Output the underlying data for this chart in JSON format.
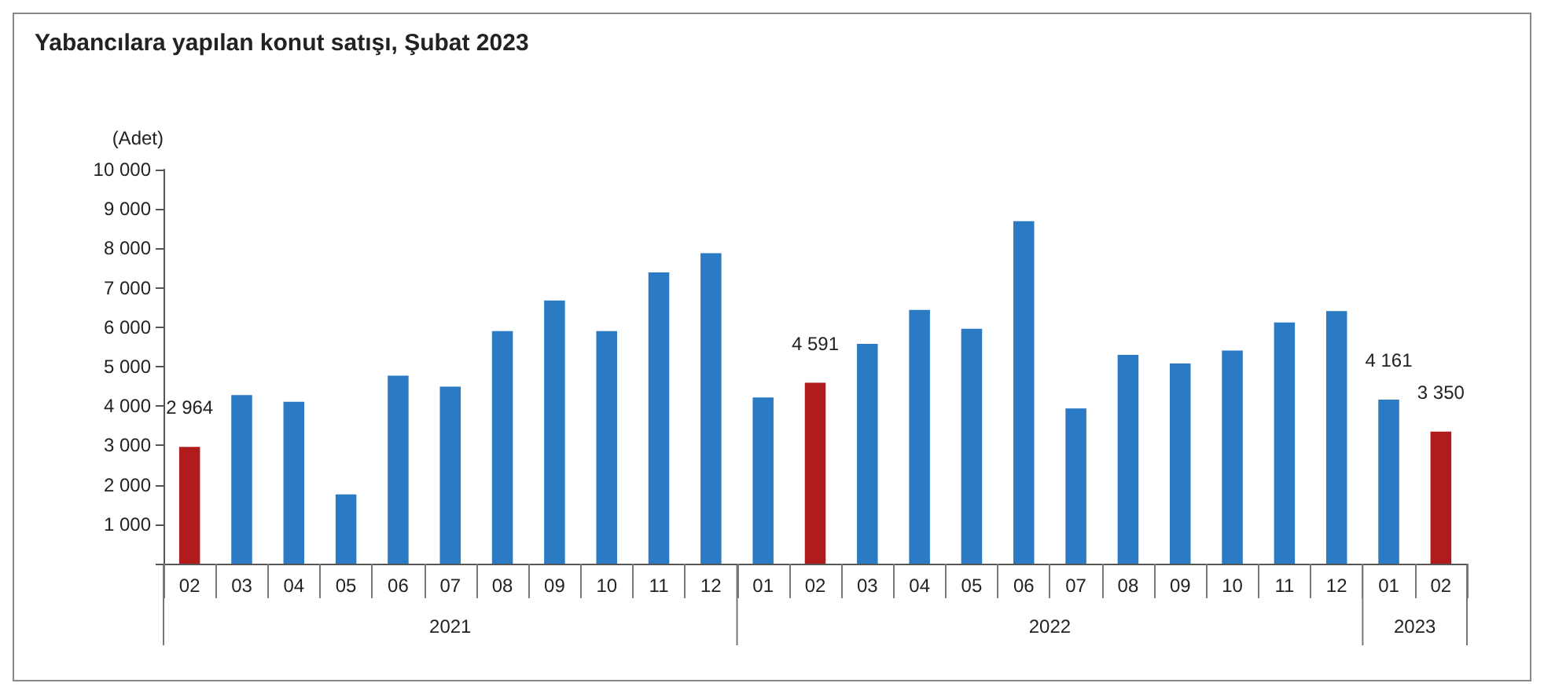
{
  "chart_data": {
    "type": "bar",
    "title": "Yabancılara yapılan konut satışı, Şubat 2023",
    "ylabel": "(Adet)",
    "categories": [
      "02",
      "03",
      "04",
      "05",
      "06",
      "07",
      "08",
      "09",
      "10",
      "11",
      "12",
      "01",
      "02",
      "03",
      "04",
      "05",
      "06",
      "07",
      "08",
      "09",
      "10",
      "11",
      "12",
      "01",
      "02"
    ],
    "values": [
      2964,
      4280,
      4110,
      1760,
      4770,
      4490,
      5900,
      6680,
      5900,
      7390,
      7880,
      4220,
      4591,
      5580,
      6440,
      5960,
      8690,
      3940,
      5300,
      5080,
      5410,
      6120,
      6410,
      4161,
      3350
    ],
    "colors": [
      "#b01c1c",
      "#2b7bc4",
      "#2b7bc4",
      "#2b7bc4",
      "#2b7bc4",
      "#2b7bc4",
      "#2b7bc4",
      "#2b7bc4",
      "#2b7bc4",
      "#2b7bc4",
      "#2b7bc4",
      "#2b7bc4",
      "#b01c1c",
      "#2b7bc4",
      "#2b7bc4",
      "#2b7bc4",
      "#2b7bc4",
      "#2b7bc4",
      "#2b7bc4",
      "#2b7bc4",
      "#2b7bc4",
      "#2b7bc4",
      "#2b7bc4",
      "#2b7bc4",
      "#b01c1c"
    ],
    "value_labels": [
      "2 964",
      null,
      null,
      null,
      null,
      null,
      null,
      null,
      null,
      null,
      null,
      null,
      "4 591",
      null,
      null,
      null,
      null,
      null,
      null,
      null,
      null,
      null,
      null,
      "4 161",
      "3 350"
    ],
    "annotations": [
      "2021",
      "2022",
      "2023"
    ],
    "ylim": [
      0,
      10000
    ],
    "yticks": [
      {
        "value": 0,
        "label": null
      },
      {
        "value": 1000,
        "label": "1 000"
      },
      {
        "value": 2000,
        "label": "2 000"
      },
      {
        "value": 3000,
        "label": "3 000"
      },
      {
        "value": 4000,
        "label": "4 000"
      },
      {
        "value": 5000,
        "label": "5 000"
      },
      {
        "value": 6000,
        "label": "6 000"
      },
      {
        "value": 7000,
        "label": "7 000"
      },
      {
        "value": 8000,
        "label": "8 000"
      },
      {
        "value": 9000,
        "label": "9 000"
      },
      {
        "value": 10000,
        "label": "10 000"
      }
    ],
    "grid": false
  }
}
